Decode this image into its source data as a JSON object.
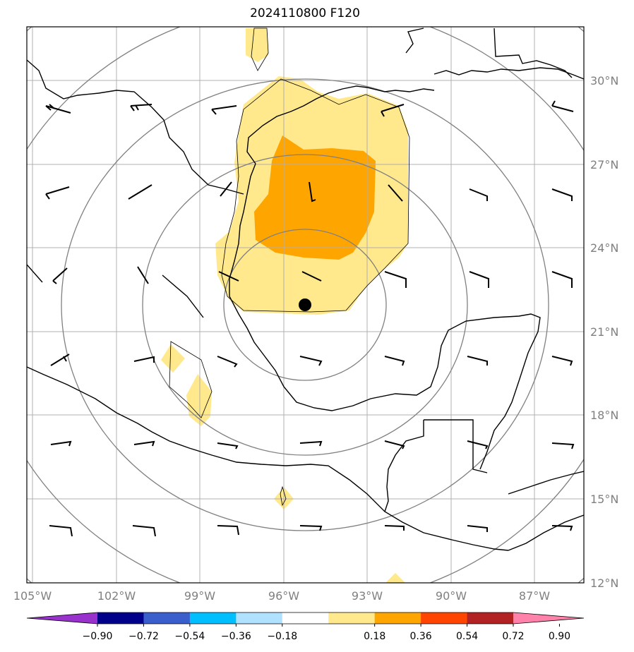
{
  "title": "2024110800 F120",
  "map": {
    "grid": true,
    "lat_labels": [
      "30°N",
      "27°N",
      "24°N",
      "21°N",
      "18°N",
      "15°N",
      "12°N"
    ],
    "lon_labels": [
      "105°W",
      "102°W",
      "99°W",
      "96°W",
      "93°W",
      "90°W",
      "87°W"
    ],
    "center_marker": {
      "lat": 22.0,
      "lon": -95.3
    },
    "range_rings": 5
  },
  "colorbar": {
    "tick_labels": [
      "−0.90",
      "−0.72",
      "−0.54",
      "−0.36",
      "−0.18",
      "0.18",
      "0.36",
      "0.54",
      "0.72",
      "0.90"
    ],
    "colors": [
      "#9932cc",
      "#00008b",
      "#3a5fcd",
      "#00bfff",
      "#b0e2ff",
      "#ffffff",
      "#ffe98c",
      "#ffa500",
      "#ff4500",
      "#b22222",
      "#ff82ab"
    ]
  },
  "colors": {
    "fill_low": "#ffe98c",
    "fill_high": "#ffa500",
    "coast": "#000000",
    "grid": "#b0b0b0",
    "rings": "#808080"
  }
}
